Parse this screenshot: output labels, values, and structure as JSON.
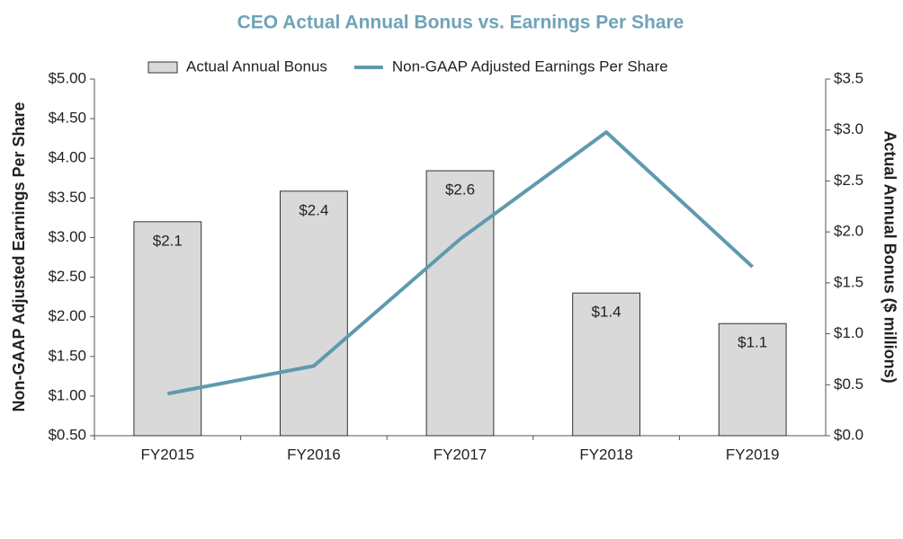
{
  "chart_data": {
    "type": "bar-line",
    "title": "CEO Actual Annual Bonus vs. Earnings Per Share",
    "categories": [
      "FY2015",
      "FY2016",
      "FY2017",
      "FY2018",
      "FY2019"
    ],
    "series": [
      {
        "name": "Actual Annual Bonus",
        "type": "bar",
        "axis": "y2",
        "color": "#d9d9d9",
        "values": [
          2.1,
          2.4,
          2.6,
          1.4,
          1.1
        ],
        "value_labels": [
          "$2.1",
          "$2.4",
          "$2.6",
          "$1.4",
          "$1.1"
        ]
      },
      {
        "name": "Non-GAAP Adjusted Earnings Per Share",
        "type": "line",
        "axis": "y",
        "color": "#5f9aaf",
        "values": [
          1.03,
          1.38,
          2.98,
          4.33,
          2.63
        ]
      }
    ],
    "y_label": "Non-GAAP Adjusted Earnings Per Share",
    "y2_label": "Actual Annual Bonus ($ millions)",
    "ylim": [
      0.5,
      5.0
    ],
    "yticks": [
      {
        "value": 0.5,
        "label": "$0.50"
      },
      {
        "value": 1.0,
        "label": "$1.00"
      },
      {
        "value": 1.5,
        "label": "$1.50"
      },
      {
        "value": 2.0,
        "label": "$2.00"
      },
      {
        "value": 2.5,
        "label": "$2.50"
      },
      {
        "value": 3.0,
        "label": "$3.00"
      },
      {
        "value": 3.5,
        "label": "$3.50"
      },
      {
        "value": 4.0,
        "label": "$4.00"
      },
      {
        "value": 4.5,
        "label": "$4.50"
      },
      {
        "value": 5.0,
        "label": "$5.00"
      }
    ],
    "y2lim": [
      0.0,
      3.5
    ],
    "y2ticks": [
      {
        "value": 0.0,
        "label": "$0.0"
      },
      {
        "value": 0.5,
        "label": "$0.5"
      },
      {
        "value": 1.0,
        "label": "$1.0"
      },
      {
        "value": 1.5,
        "label": "$1.5"
      },
      {
        "value": 2.0,
        "label": "$2.0"
      },
      {
        "value": 2.5,
        "label": "$2.5"
      },
      {
        "value": 3.0,
        "label": "$3.0"
      },
      {
        "value": 3.5,
        "label": "$3.5"
      }
    ],
    "grid": false,
    "legend": "top"
  }
}
